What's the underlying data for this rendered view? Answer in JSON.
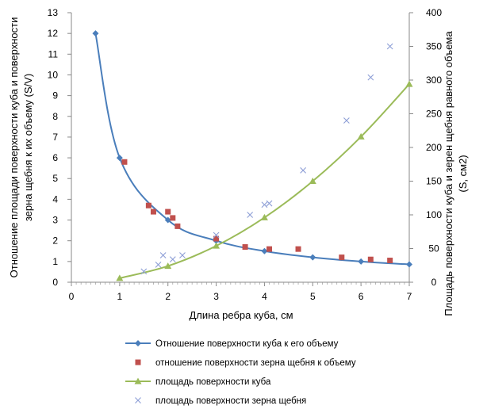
{
  "chart_data": {
    "type": "line",
    "xlabel": "Длина ребра куба, см",
    "ylabel_left_lines": [
      "Отношение площади поверхности куба и поверхности",
      "зерна щебня к их объему (S/V)"
    ],
    "ylabel_right_lines": [
      "Площадь поверхности куба и зерен щебня равного объема",
      "(S, см2)"
    ],
    "xlim": [
      0,
      7
    ],
    "ylim_left": [
      0,
      13
    ],
    "ylim_right": [
      0,
      400
    ],
    "x_ticks": [
      "0",
      "1",
      "2",
      "3",
      "4",
      "5",
      "6",
      "7"
    ],
    "y_left_ticks": [
      "0",
      "1",
      "2",
      "3",
      "4",
      "5",
      "6",
      "7",
      "8",
      "9",
      "10",
      "11",
      "12",
      "13"
    ],
    "y_right_ticks": [
      "0",
      "50",
      "100",
      "150",
      "200",
      "250",
      "300",
      "350",
      "400"
    ],
    "legend_position": "bottom",
    "series": [
      {
        "name": "Отношение поверхности куба к его объему",
        "axis": "left",
        "style": "line-diamond",
        "color": "#4a7ebb",
        "x": [
          0.5,
          1,
          2,
          3,
          4,
          5,
          6,
          7
        ],
        "y": [
          12,
          6,
          3,
          2,
          1.5,
          1.2,
          1,
          0.86
        ]
      },
      {
        "name": "отношение поверхности зерна щебня к объему",
        "axis": "left",
        "style": "square",
        "color": "#c0504d",
        "x": [
          1.1,
          1.6,
          1.7,
          2.0,
          2.1,
          2.2,
          3.0,
          3.6,
          4.1,
          4.7,
          5.6,
          6.2,
          6.6
        ],
        "y": [
          5.8,
          3.7,
          3.4,
          3.4,
          3.1,
          2.7,
          2.1,
          1.7,
          1.6,
          1.6,
          1.2,
          1.1,
          1.05
        ]
      },
      {
        "name": "площадь поверхности куба",
        "axis": "right",
        "style": "line-triangle",
        "color": "#9bbb59",
        "x": [
          1,
          2,
          3,
          4,
          5,
          6,
          7
        ],
        "y": [
          6,
          24,
          54,
          96,
          150,
          216,
          294
        ]
      },
      {
        "name": "площадь поверхности зерна щебня",
        "axis": "right",
        "style": "cross",
        "color": "#8d9ed6",
        "x": [
          1.5,
          1.8,
          1.9,
          2.1,
          2.3,
          3.0,
          3.7,
          4.0,
          4.1,
          4.8,
          5.7,
          6.2,
          6.6
        ],
        "y": [
          16,
          26,
          40,
          34,
          40,
          70,
          100,
          115,
          117,
          166,
          240,
          304,
          350
        ]
      }
    ]
  }
}
